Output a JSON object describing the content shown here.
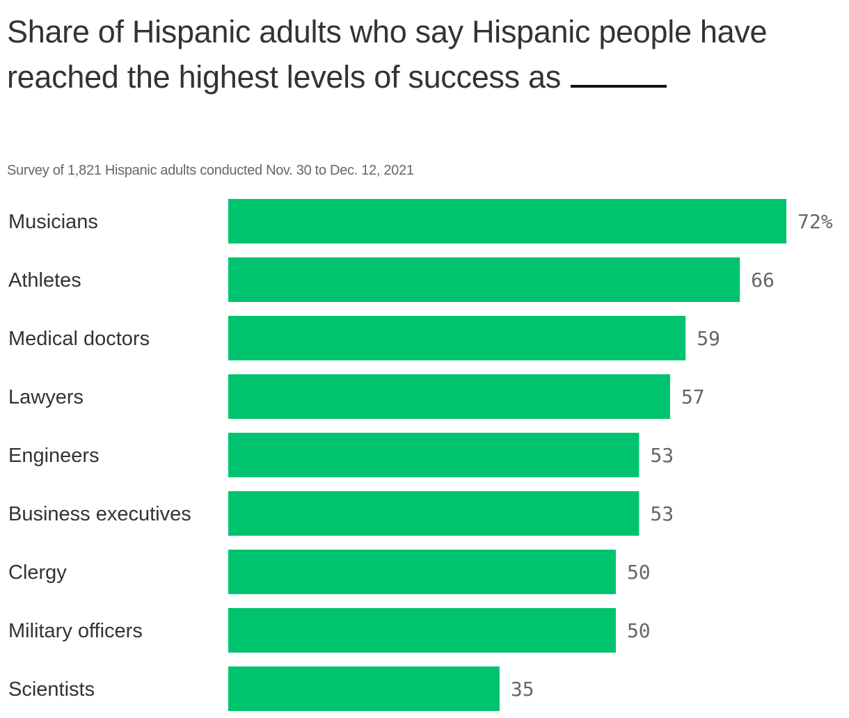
{
  "title": "Share of Hispanic adults who say Hispanic people have reached the highest levels of success as",
  "subtitle": "Survey of 1,821 Hispanic adults conducted Nov. 30 to Dec. 12, 2021",
  "chart_data": {
    "type": "bar",
    "orientation": "horizontal",
    "title": "Share of Hispanic adults who say Hispanic people have reached the highest levels of success as ____",
    "subtitle": "Survey of 1,821 Hispanic adults conducted Nov. 30 to Dec. 12, 2021",
    "categories": [
      "Musicians",
      "Athletes",
      "Medical doctors",
      "Lawyers",
      "Engineers",
      "Business executives",
      "Clergy",
      "Military officers",
      "Scientists"
    ],
    "values": [
      72,
      66,
      59,
      57,
      53,
      53,
      50,
      50,
      35
    ],
    "value_labels": [
      "72%",
      "66",
      "59",
      "57",
      "53",
      "53",
      "50",
      "50",
      "35"
    ],
    "unit": "%",
    "xlim": [
      0,
      72
    ],
    "grid": false,
    "bar_color": "#00c36e"
  }
}
